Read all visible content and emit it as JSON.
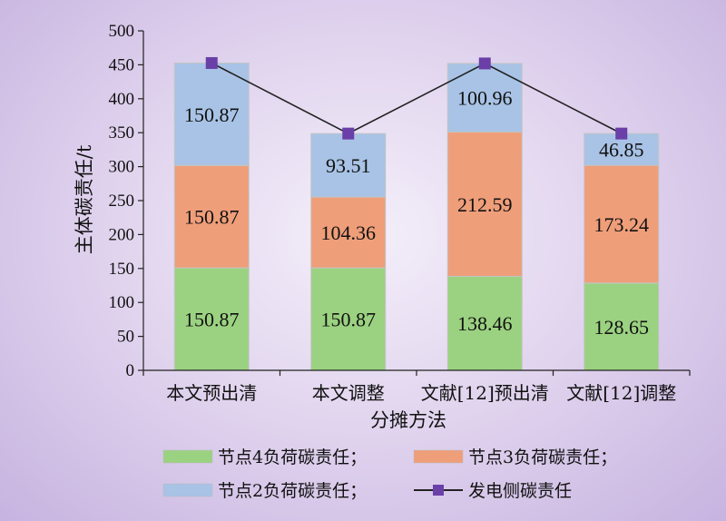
{
  "chart_data": {
    "type": "bar",
    "stacked": true,
    "categories": [
      "本文预出清",
      "本文调整",
      "文献[12]预出清",
      "文献[12]调整"
    ],
    "series": [
      {
        "name": "节点4负荷碳责任；",
        "color": "#9bd281",
        "values": [
          150.87,
          150.87,
          138.46,
          128.65
        ]
      },
      {
        "name": "节点3负荷碳责任；",
        "color": "#ef9e7a",
        "values": [
          150.87,
          104.36,
          212.59,
          173.24
        ]
      },
      {
        "name": "节点2负荷碳责任；",
        "color": "#a8c3e5",
        "values": [
          150.87,
          93.51,
          100.96,
          46.85
        ]
      }
    ],
    "line_series": {
      "name": "发电侧碳责任",
      "color": "#6a3fa8",
      "values": [
        452.61,
        348.74,
        452.01,
        348.74
      ]
    },
    "data_labels": [
      [
        "150.87",
        "150.87",
        "138.46",
        "128.65"
      ],
      [
        "150.87",
        "104.36",
        "212.59",
        "173.24"
      ],
      [
        "150.87",
        "93.51",
        "100.96",
        "46.85"
      ]
    ],
    "xlabel": "分摊方法",
    "ylabel": "主体碳责任/t",
    "ylim": [
      0,
      500
    ],
    "yticks": [
      "0",
      "50",
      "100",
      "150",
      "200",
      "250",
      "300",
      "350",
      "400",
      "450",
      "500"
    ],
    "grid": false,
    "legend_position": "bottom"
  }
}
